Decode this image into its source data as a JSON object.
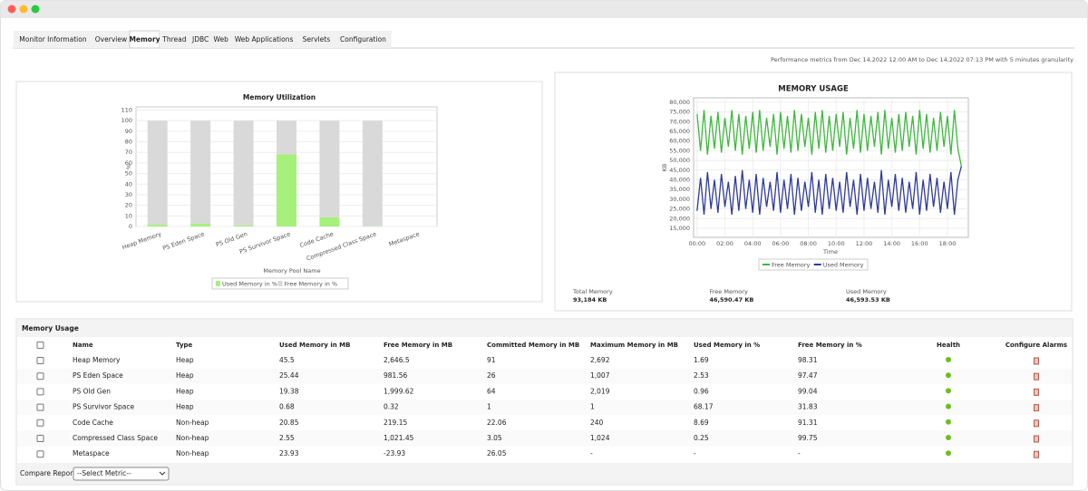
{
  "tabs": [
    "Monitor Information",
    "Overview",
    "Memory",
    "Thread",
    "JDBC",
    "Web",
    "Web Applications",
    "Servlets",
    "Configuration"
  ],
  "active_tab": "Memory",
  "period_note": "Performance metrics from Dec 14,2022 12:00 AM to Dec 14,2022 07:13 PM with 5 minutes granularity",
  "chart_data": [
    {
      "type": "bar",
      "stacked": true,
      "title": "Memory Utilization",
      "x_label": "Memory Pool Name",
      "y_label": "%",
      "categories": [
        "Heap Memory",
        "PS Eden Space",
        "PS Old Gen",
        "PS Survivor Space",
        "Code Cache",
        "Compressed Class Space",
        "Metaspace"
      ],
      "series": [
        {
          "name": "Used Memory in %",
          "color": "#a6f07c",
          "values": [
            1.69,
            2.53,
            0.96,
            68.17,
            8.69,
            0.25,
            null
          ]
        },
        {
          "name": "Free Memory in %",
          "color": "#d9d9d9",
          "values": [
            98.31,
            97.47,
            99.04,
            31.83,
            91.31,
            99.75,
            null
          ]
        }
      ],
      "ylim": [
        0,
        113
      ],
      "yticks": [
        0,
        10,
        20,
        30,
        40,
        50,
        60,
        70,
        80,
        90,
        100,
        110
      ],
      "grid": true
    },
    {
      "type": "line",
      "title": "MEMORY USAGE",
      "x_label": "Time",
      "y_label": "KB",
      "x": [
        0,
        0.25,
        0.5,
        0.75,
        1,
        1.25,
        1.5,
        1.75,
        2,
        2.25,
        2.5,
        2.75,
        3,
        3.25,
        3.5,
        3.75,
        4,
        4.25,
        4.5,
        4.75,
        5,
        5.25,
        5.5,
        5.75,
        6,
        6.25,
        6.5,
        6.75,
        7,
        7.25,
        7.5,
        7.75,
        8,
        8.25,
        8.5,
        8.75,
        9,
        9.25,
        9.5,
        9.75,
        10,
        10.25,
        10.5,
        10.75,
        11,
        11.25,
        11.5,
        11.75,
        12,
        12.25,
        12.5,
        12.75,
        13,
        13.25,
        13.5,
        13.75,
        14,
        14.25,
        14.5,
        14.75,
        15,
        15.25,
        15.5,
        15.75,
        16,
        16.25,
        16.5,
        16.75,
        17,
        17.25,
        17.5,
        17.75,
        18,
        18.25,
        18.5,
        18.75,
        19
      ],
      "series": [
        {
          "name": "Free Memory",
          "color": "#3cb93c",
          "values": [
            74000,
            55000,
            76000,
            53000,
            73000,
            56000,
            75000,
            54000,
            72000,
            57000,
            76000,
            55000,
            74000,
            53000,
            73000,
            56000,
            75000,
            54000,
            76000,
            55000,
            72000,
            57000,
            74000,
            53000,
            75000,
            56000,
            73000,
            54000,
            76000,
            55000,
            74000,
            57000,
            72000,
            53000,
            75000,
            56000,
            76000,
            54000,
            73000,
            55000,
            74000,
            57000,
            75000,
            53000,
            72000,
            56000,
            76000,
            54000,
            74000,
            55000,
            73000,
            57000,
            75000,
            53000,
            76000,
            56000,
            72000,
            54000,
            74000,
            55000,
            75000,
            57000,
            73000,
            53000,
            76000,
            56000,
            74000,
            54000,
            72000,
            55000,
            75000,
            57000,
            73000,
            53000,
            76000,
            56000,
            47000
          ]
        },
        {
          "name": "Used Memory",
          "color": "#2f3a9e",
          "values": [
            24000,
            41000,
            22000,
            44000,
            25000,
            40000,
            23000,
            43000,
            26000,
            39000,
            22000,
            42000,
            24000,
            45000,
            25000,
            40000,
            23000,
            43000,
            22000,
            41000,
            26000,
            39000,
            24000,
            44000,
            23000,
            40000,
            25000,
            43000,
            22000,
            41000,
            24000,
            39000,
            26000,
            44000,
            23000,
            40000,
            22000,
            43000,
            25000,
            41000,
            24000,
            39000,
            23000,
            44000,
            26000,
            40000,
            22000,
            43000,
            24000,
            41000,
            25000,
            39000,
            23000,
            45000,
            22000,
            40000,
            26000,
            43000,
            24000,
            41000,
            23000,
            39000,
            25000,
            44000,
            22000,
            40000,
            24000,
            43000,
            26000,
            41000,
            23000,
            39000,
            25000,
            44000,
            22000,
            40000,
            47000
          ]
        }
      ],
      "xlim": [
        -0.25,
        19.5
      ],
      "xticks": [
        {
          "value": 0,
          "label": "00:00"
        },
        {
          "value": 2,
          "label": "02:00"
        },
        {
          "value": 4,
          "label": "04:00"
        },
        {
          "value": 6,
          "label": "06:00"
        },
        {
          "value": 8,
          "label": "08:00"
        },
        {
          "value": 10,
          "label": "10:00"
        },
        {
          "value": 12,
          "label": "12:00"
        },
        {
          "value": 14,
          "label": "14:00"
        },
        {
          "value": 16,
          "label": "16:00"
        },
        {
          "value": 18,
          "label": "18:00"
        }
      ],
      "ylim": [
        10300,
        82300
      ],
      "yticks": [
        {
          "value": 15000,
          "label": "15,000"
        },
        {
          "value": 20000,
          "label": "20,000"
        },
        {
          "value": 25000,
          "label": "25,000"
        },
        {
          "value": 30000,
          "label": "30,000"
        },
        {
          "value": 35000,
          "label": "35,000"
        },
        {
          "value": 40000,
          "label": "40,000"
        },
        {
          "value": 45000,
          "label": "45,000"
        },
        {
          "value": 50000,
          "label": "50,000"
        },
        {
          "value": 55000,
          "label": "55,000"
        },
        {
          "value": 60000,
          "label": "60,000"
        },
        {
          "value": 65000,
          "label": "65,000"
        },
        {
          "value": 70000,
          "label": "70,000"
        },
        {
          "value": 75000,
          "label": "75,000"
        },
        {
          "value": 80000,
          "label": "80,000"
        }
      ],
      "grid": true
    }
  ],
  "summary": [
    {
      "label": "Total Memory",
      "value": "93,184 KB"
    },
    {
      "label": "Free Memory",
      "value": "46,590.47 KB"
    },
    {
      "label": "Used Memory",
      "value": "46,593.53 KB"
    }
  ],
  "table": {
    "title": "Memory Usage",
    "headers": [
      "Name",
      "Type",
      "Used Memory in MB",
      "Free Memory in MB",
      "Committed Memory in MB",
      "Maximum Memory in MB",
      "Used Memory in %",
      "Free Memory in %",
      "Health",
      "Configure Alarms"
    ],
    "rows": [
      [
        "Heap Memory",
        "Heap",
        "45.5",
        "2,646.5",
        "91",
        "2,692",
        "1.69",
        "98.31"
      ],
      [
        "PS Eden Space",
        "Heap",
        "25.44",
        "981.56",
        "26",
        "1,007",
        "2.53",
        "97.47"
      ],
      [
        "PS Old Gen",
        "Heap",
        "19.38",
        "1,999.62",
        "64",
        "2,019",
        "0.96",
        "99.04"
      ],
      [
        "PS Survivor Space",
        "Heap",
        "0.68",
        "0.32",
        "1",
        "1",
        "68.17",
        "31.83"
      ],
      [
        "Code Cache",
        "Non-heap",
        "20.85",
        "219.15",
        "22.06",
        "240",
        "8.69",
        "91.31"
      ],
      [
        "Compressed Class Space",
        "Non-heap",
        "2.55",
        "1,021.45",
        "3.05",
        "1,024",
        "0.25",
        "99.75"
      ],
      [
        "Metaspace",
        "Non-heap",
        "23.93",
        "-23.93",
        "26.05",
        "-",
        "-",
        "-"
      ]
    ]
  },
  "compare": {
    "label": "Compare Reports",
    "select": "--Select Metric--"
  }
}
